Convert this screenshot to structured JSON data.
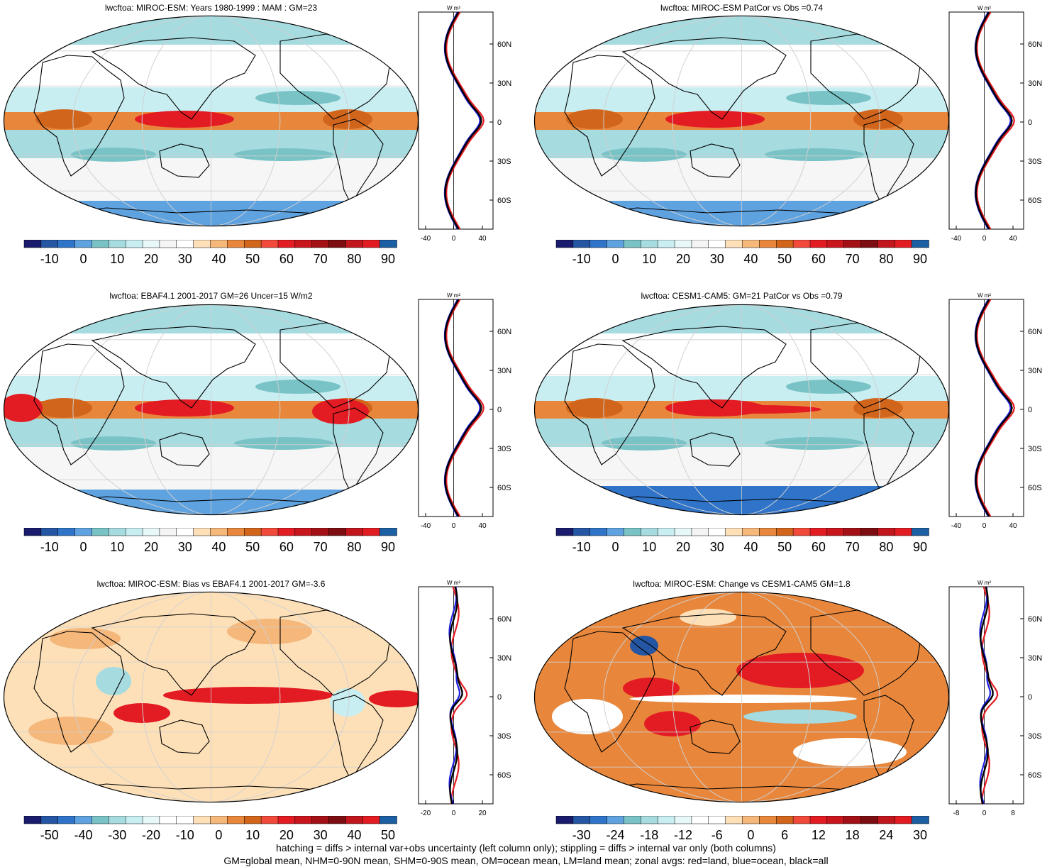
{
  "palette_main": [
    "#1b1b6e",
    "#2556a3",
    "#2f74c9",
    "#5ea2e0",
    "#79c3c6",
    "#a6dbe0",
    "#c8eef2",
    "#e8f7f9",
    "#f4f4f4",
    "#ffffff",
    "#fde0b8",
    "#f5b77a",
    "#e8873c",
    "#d2651c",
    "#f24a3a",
    "#e31b23",
    "#c9161c",
    "#a31015",
    "#7c0d10",
    "#c0161c",
    "#e31b23",
    "#1d5fa3"
  ],
  "palette_diff": [
    "#1b1b6e",
    "#2556a3",
    "#2f74c9",
    "#5ea2e0",
    "#79c3c6",
    "#a6dbe0",
    "#c8eef2",
    "#e8f7f9",
    "#ffffff",
    "#ffffff",
    "#fde0b8",
    "#f5b77a",
    "#e8873c",
    "#d2651c",
    "#f24a3a",
    "#e31b23",
    "#c9161c",
    "#a31015",
    "#7c0d10",
    "#c0161c",
    "#e31b23",
    "#1d5fa3"
  ],
  "panels": [
    {
      "id": "p1",
      "title": "lwcftoa: MIROC-ESM: Years 1980-1999 : MAM : GM=23",
      "kind": "main",
      "cbar_labels": [
        "-10",
        "0",
        "10",
        "20",
        "30",
        "40",
        "50",
        "60",
        "70",
        "80",
        "90"
      ],
      "profile_units": "W m²",
      "profile_xticks": [
        "-40",
        "0",
        "40"
      ],
      "profile_lat_labels": [
        "60N",
        "30N",
        "0",
        "30S",
        "60S"
      ],
      "hatching": true
    },
    {
      "id": "p2",
      "title": "lwcftoa: MIROC-ESM PatCor vs Obs =0.74",
      "kind": "main",
      "cbar_labels": [
        "-10",
        "0",
        "10",
        "20",
        "30",
        "40",
        "50",
        "60",
        "70",
        "80",
        "90"
      ],
      "profile_units": "W m²",
      "profile_xticks": [
        "-40",
        "0",
        "40"
      ],
      "profile_lat_labels": [
        "60N",
        "30N",
        "0",
        "30S",
        "60S"
      ],
      "hatching": false
    },
    {
      "id": "p3",
      "title": "lwcftoa: EBAF4.1 2001-2017 GM=26 Uncer=15 W/m2",
      "kind": "main",
      "cbar_labels": [
        "-10",
        "0",
        "10",
        "20",
        "30",
        "40",
        "50",
        "60",
        "70",
        "80",
        "90"
      ],
      "profile_units": "W m²",
      "profile_xticks": [
        "-40",
        "0",
        "40"
      ],
      "profile_lat_labels": [
        "60N",
        "30N",
        "0",
        "30S",
        "60S"
      ],
      "hatching": true
    },
    {
      "id": "p4",
      "title": "lwcftoa: CESM1-CAM5: GM=21 PatCor vs Obs =0.79",
      "kind": "main",
      "cbar_labels": [
        "-10",
        "0",
        "10",
        "20",
        "30",
        "40",
        "50",
        "60",
        "70",
        "80",
        "90"
      ],
      "profile_units": "W m²",
      "profile_xticks": [
        "-40",
        "0",
        "40"
      ],
      "profile_lat_labels": [
        "60N",
        "30N",
        "0",
        "30S",
        "60S"
      ],
      "hatching": false
    },
    {
      "id": "p5",
      "title": "lwcftoa: MIROC-ESM: Bias vs EBAF4.1 2001-2017 GM=-3.6",
      "kind": "bias",
      "cbar_labels": [
        "-50",
        "-40",
        "-30",
        "-20",
        "-10",
        "0",
        "10",
        "20",
        "30",
        "40",
        "50"
      ],
      "profile_units": "W m²",
      "profile_xticks": [
        "-20",
        "0",
        "20"
      ],
      "profile_lat_labels": [
        "60N",
        "30N",
        "0",
        "30S",
        "60S"
      ],
      "hatching": true
    },
    {
      "id": "p6",
      "title": "lwcftoa: MIROC-ESM: Change vs CESM1-CAM5 GM=1.8",
      "kind": "change",
      "cbar_labels": [
        "-30",
        "-24",
        "-18",
        "-12",
        "-6",
        "0",
        "6",
        "12",
        "18",
        "24",
        "30"
      ],
      "profile_units": "W m²",
      "profile_xticks": [
        "-8",
        "0",
        "8"
      ],
      "profile_lat_labels": [
        "60N",
        "30N",
        "0",
        "30S",
        "60S"
      ],
      "hatching": false
    }
  ],
  "footnote": {
    "line1": "hatching = diffs > internal var+obs uncertainty (left column only); stippling = diffs > internal var only (both columns)",
    "line2": "GM=global mean, NHM=0-90N mean, SHM=0-90S mean, OM=ocean mean, LM=land mean; zonal avgs: red=land, blue=ocean, black=all"
  }
}
